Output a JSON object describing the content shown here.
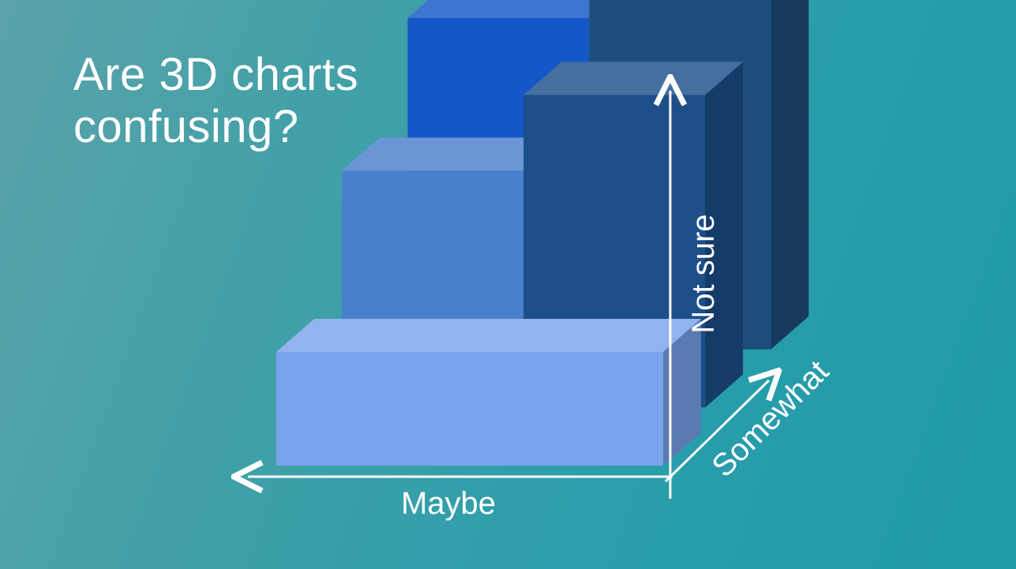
{
  "slide": {
    "title": "Are 3D charts confusing?"
  },
  "chart_data": {
    "type": "bar",
    "subtype": "3d-block",
    "title": "Are 3D charts confusing?",
    "axes": {
      "x": "Maybe",
      "y": "Not sure",
      "z": "Somewhat"
    },
    "blocks": [
      {
        "row": "back",
        "col": "left",
        "value": 3.5,
        "color": "#1457c8"
      },
      {
        "row": "back",
        "col": "right",
        "value": 4.5,
        "color": "#1e4f7c"
      },
      {
        "row": "middle",
        "col": "left",
        "value": 2.5,
        "color": "#4a7fcc"
      },
      {
        "row": "middle",
        "col": "right",
        "value": 3.3,
        "color": "#1c4f8a"
      },
      {
        "row": "front",
        "col": "full",
        "value": 1.2,
        "color": "#79a3ec"
      }
    ],
    "grid": false,
    "legend": "none"
  }
}
